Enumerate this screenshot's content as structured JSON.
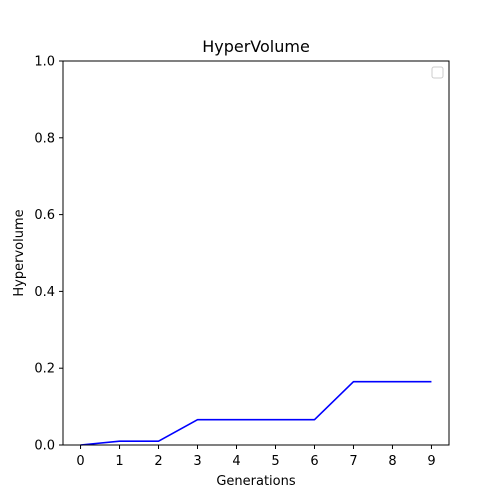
{
  "chart_data": {
    "type": "line",
    "title": "HyperVolume",
    "xlabel": "Generations",
    "ylabel": "Hypervolume",
    "x": [
      0,
      1,
      2,
      3,
      4,
      5,
      6,
      7,
      8,
      9
    ],
    "x_ticks": [
      "0",
      "1",
      "2",
      "3",
      "4",
      "5",
      "6",
      "7",
      "8",
      "9"
    ],
    "y_ticks": [
      "0.0",
      "0.2",
      "0.4",
      "0.6",
      "0.8",
      "1.0"
    ],
    "xlim": [
      -0.45,
      9.45
    ],
    "ylim": [
      0,
      1
    ],
    "grid": false,
    "legend": "upper right (empty)",
    "series": [
      {
        "values": [
          0.0,
          0.01,
          0.01,
          0.066,
          0.066,
          0.066,
          0.066,
          0.165,
          0.165,
          0.165
        ],
        "color": "#0000ff"
      }
    ]
  }
}
